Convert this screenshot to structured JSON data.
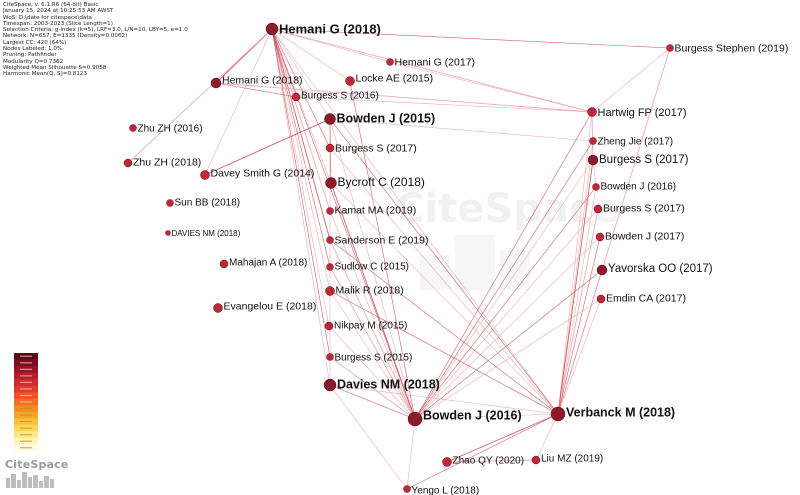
{
  "info": [
    "CiteSpace, v. 6.1.R6 (64-bit) Basic",
    "January 15, 2024 at 10:25:53 AM AWST",
    "WoS: D:\\date for citespace\\data",
    "Timespan: 2003-2023 (Slice Length=1)",
    "Selection Criteria: g-index (k=5), LRF=3.0, L/N=10, LBY=5, e=1.0",
    "Network: N=657, E=1335 (Density=0.0062)",
    "Largest CC: 420 (64%)",
    "Nodes Labeled: 1.0%",
    "Pruning: Pathfinder",
    "Modularity Q=0.7362",
    "Weighted Mean Silhouette S=0.9058",
    "Harmonic Mean(Q, S)=0.8123"
  ],
  "brand": "CiteSpace",
  "watermark": "CiteSpace",
  "colors": {
    "node_dark": "#8b1a2b",
    "node_mid": "#c0283a",
    "edge": "#c23a4a",
    "edge_light": "#e49aa2"
  },
  "legend_colors": [
    "#5a0a1a",
    "#7a0f22",
    "#9a1428",
    "#b71c2c",
    "#cf2a2f",
    "#e03a2c",
    "#ea5428",
    "#f06e24",
    "#f48a22",
    "#f7a628",
    "#f9c23a",
    "#fbd75a",
    "#fde887",
    "#fef3b8",
    "#fffbe0"
  ],
  "nodes": [
    {
      "id": "hemani2018",
      "label": "Hemani G (2018)"
    },
    {
      "id": "hemani2017",
      "label": "Hemani G (2017)"
    },
    {
      "id": "burgessStephen2019",
      "label": "Burgess Stephen (2019)"
    },
    {
      "id": "hemani2018b",
      "label": "Hemani G (2018)"
    },
    {
      "id": "locke2015",
      "label": "Locke AE (2015)"
    },
    {
      "id": "burgess2016",
      "label": "Burgess S (2016)"
    },
    {
      "id": "hartwig2017",
      "label": "Hartwig FP (2017)"
    },
    {
      "id": "zhuzh2016",
      "label": "Zhu ZH (2016)"
    },
    {
      "id": "bowden2015",
      "label": "Bowden J (2015)"
    },
    {
      "id": "zhengjie2017",
      "label": "Zheng Jie (2017)"
    },
    {
      "id": "burgess2017a",
      "label": "Burgess S (2017)"
    },
    {
      "id": "burgess2017b",
      "label": "Burgess S (2017)"
    },
    {
      "id": "zhuzh2018",
      "label": "Zhu ZH (2018)"
    },
    {
      "id": "daveysmith2014",
      "label": "Davey Smith G (2014)"
    },
    {
      "id": "bycroft2018",
      "label": "Bycroft C (2018)"
    },
    {
      "id": "bowden2016b",
      "label": "Bowden J (2016)"
    },
    {
      "id": "sunbb2018",
      "label": "Sun BB (2018)"
    },
    {
      "id": "burgess2017c",
      "label": "Burgess S (2017)"
    },
    {
      "id": "kamat2019",
      "label": "Kamat MA (2019)"
    },
    {
      "id": "davies2018b",
      "label": "DAVIES NM (2018)"
    },
    {
      "id": "bowden2017",
      "label": "Bowden J (2017)"
    },
    {
      "id": "sanderson2019",
      "label": "Sanderson E (2019)"
    },
    {
      "id": "mahajan2018",
      "label": "Mahajan A (2018)"
    },
    {
      "id": "sudlow2015",
      "label": "Sudlow C (2015)"
    },
    {
      "id": "yavorska2017",
      "label": "Yavorska OO (2017)"
    },
    {
      "id": "malik2018",
      "label": "Malik R (2018)"
    },
    {
      "id": "emdin2017",
      "label": "Emdin CA (2017)"
    },
    {
      "id": "evangelou2018",
      "label": "Evangelou E (2018)"
    },
    {
      "id": "nikpay2015",
      "label": "Nikpay M (2015)"
    },
    {
      "id": "burgess2015",
      "label": "Burgess S (2015)"
    },
    {
      "id": "davies2018",
      "label": "Davies NM (2018)"
    },
    {
      "id": "bowden2016",
      "label": "Bowden J (2016)"
    },
    {
      "id": "verbanck2018",
      "label": "Verbanck M (2018)"
    },
    {
      "id": "zhaoqy2020",
      "label": "Zhao QY (2020)"
    },
    {
      "id": "liumz2019",
      "label": "Liu MZ (2019)"
    },
    {
      "id": "yengo2018",
      "label": "Yengo L (2018)"
    }
  ]
}
